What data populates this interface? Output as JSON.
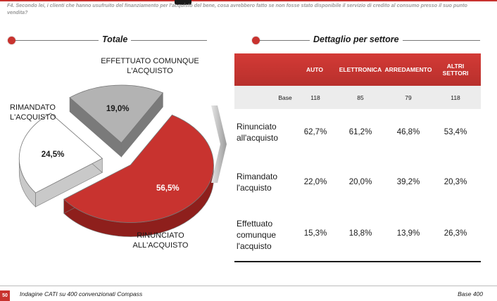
{
  "question": "F4. Secondo lei, i clienti che hanno usufruito del finanziamento per l'acquisto del bene, cosa avrebbero fatto se non fosse stato disponibile il servizio di credito al consumo presso il suo punto vendita?",
  "sections": {
    "left_title": "Totale",
    "right_title": "Dettaglio per settore"
  },
  "chart_data": {
    "type": "pie",
    "title": "Totale",
    "slices": [
      {
        "label_line1": "RINUNCIATO",
        "label_line2": "ALL'ACQUISTO",
        "value": 56.5,
        "value_label": "56,5%",
        "color": "#c8332f"
      },
      {
        "label_line1": "RIMANDATO",
        "label_line2": "L'ACQUISTO",
        "value": 24.5,
        "value_label": "24,5%",
        "color": "#ffffff"
      },
      {
        "label_line1": "EFFETTUATO COMUNQUE",
        "label_line2": "L'ACQUISTO",
        "value": 19.0,
        "value_label": "19,0%",
        "color": "#b3b3b3"
      }
    ]
  },
  "table": {
    "columns": [
      "AUTO",
      "ELETTRONICA",
      "ARREDAMENTO",
      "ALTRI SETTORI"
    ],
    "base_label": "Base",
    "base_values": [
      "118",
      "85",
      "79",
      "118"
    ],
    "rows": [
      {
        "label": [
          "Rinunciato",
          "all'acquisto"
        ],
        "values": [
          "62,7%",
          "61,2%",
          "46,8%",
          "53,4%"
        ]
      },
      {
        "label": [
          "Rimandato",
          "l'acquisto"
        ],
        "values": [
          "22,0%",
          "20,0%",
          "39,2%",
          "20,3%"
        ]
      },
      {
        "label": [
          "Effettuato",
          "comunque",
          "l'acquisto"
        ],
        "values": [
          "15,3%",
          "18,8%",
          "13,9%",
          "26,3%"
        ]
      }
    ]
  },
  "footer": {
    "page_number": "50",
    "source": "Indagine CATI su 400 convenzionati Compass",
    "base": "Base 400"
  },
  "colors": {
    "accent": "#c8332f",
    "grey_slice": "#b3b3b3",
    "base_row": "#ececec"
  }
}
